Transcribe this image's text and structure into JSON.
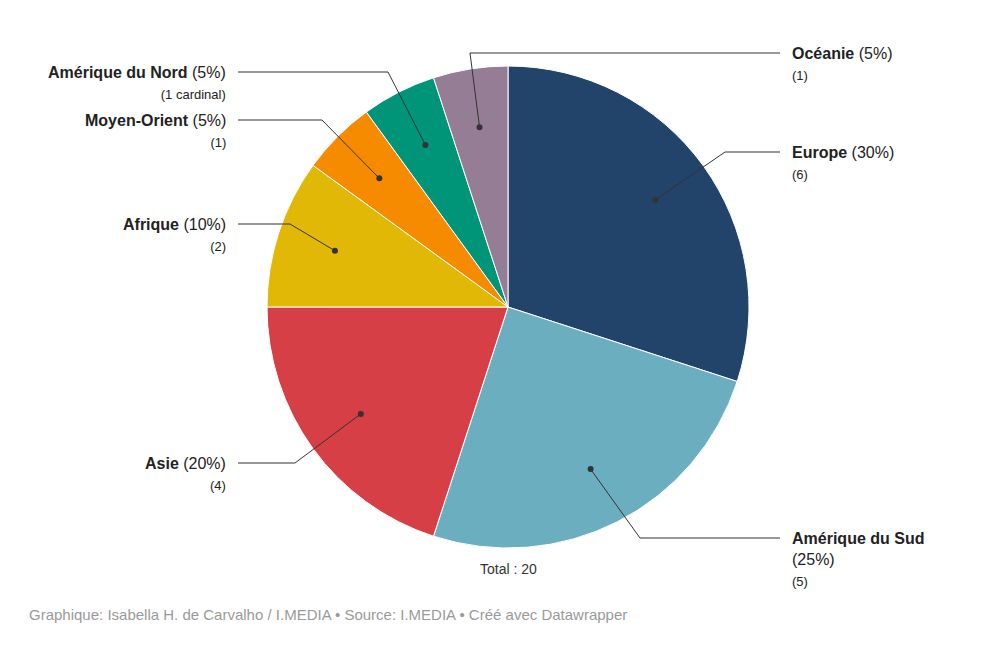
{
  "chart_data": {
    "type": "pie",
    "categories": [
      "Europe",
      "Amérique du Sud",
      "Asie",
      "Afrique",
      "Moyen-Orient",
      "Amérique du Nord",
      "Océanie"
    ],
    "values": [
      30,
      25,
      20,
      10,
      5,
      5,
      5
    ],
    "value_labels": [
      "(30%)",
      "(25%)",
      "(20%)",
      "(10%)",
      "(5%)",
      "(5%)",
      "(5%)"
    ],
    "counts": [
      6,
      5,
      4,
      2,
      1,
      1,
      1
    ],
    "count_labels": [
      "(6)",
      "(5)",
      "(4)",
      "(2)",
      "(1)",
      "(1 cardinal)",
      "(1)"
    ],
    "colors": [
      "#22436a",
      "#6aaec0",
      "#d63f46",
      "#e2b806",
      "#f78b00",
      "#009479",
      "#957d95"
    ],
    "total": {
      "value": 20,
      "label": "Total : 20"
    },
    "source": "Graphique: Isabella H. de Carvalho / I.MEDIA • Source: I.MEDIA • Créé avec Datawrapper"
  }
}
